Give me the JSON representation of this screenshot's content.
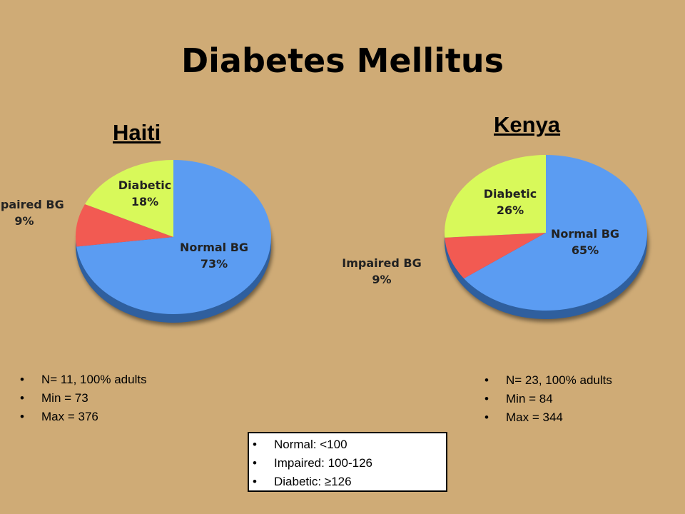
{
  "title": "Diabetes Mellitus",
  "chart_data": [
    {
      "type": "pie",
      "title": "Haiti",
      "slices": [
        {
          "label": "Normal BG",
          "value": 73,
          "display": "73%",
          "color": "#5b9cf2"
        },
        {
          "label": "Impaired BG",
          "value": 9,
          "display": "9%",
          "color": "#f25a52"
        },
        {
          "label": "Diabetic",
          "value": 18,
          "display": "18%",
          "color": "#d8f95a"
        }
      ],
      "stats": [
        "N= 11, 100% adults",
        "Min = 73",
        "Max = 376"
      ]
    },
    {
      "type": "pie",
      "title": "Kenya",
      "slices": [
        {
          "label": "Normal BG",
          "value": 65,
          "display": "65%",
          "color": "#5b9cf2"
        },
        {
          "label": "Impaired BG",
          "value": 9,
          "display": "9%",
          "color": "#f25a52"
        },
        {
          "label": "Diabetic",
          "value": 26,
          "display": "26%",
          "color": "#d8f95a"
        }
      ],
      "stats": [
        "N= 23, 100% adults",
        "Min = 84",
        "Max = 344"
      ]
    }
  ],
  "legend": [
    "Normal: <100",
    "Impaired: 100-126",
    "Diabetic: ≥126"
  ]
}
